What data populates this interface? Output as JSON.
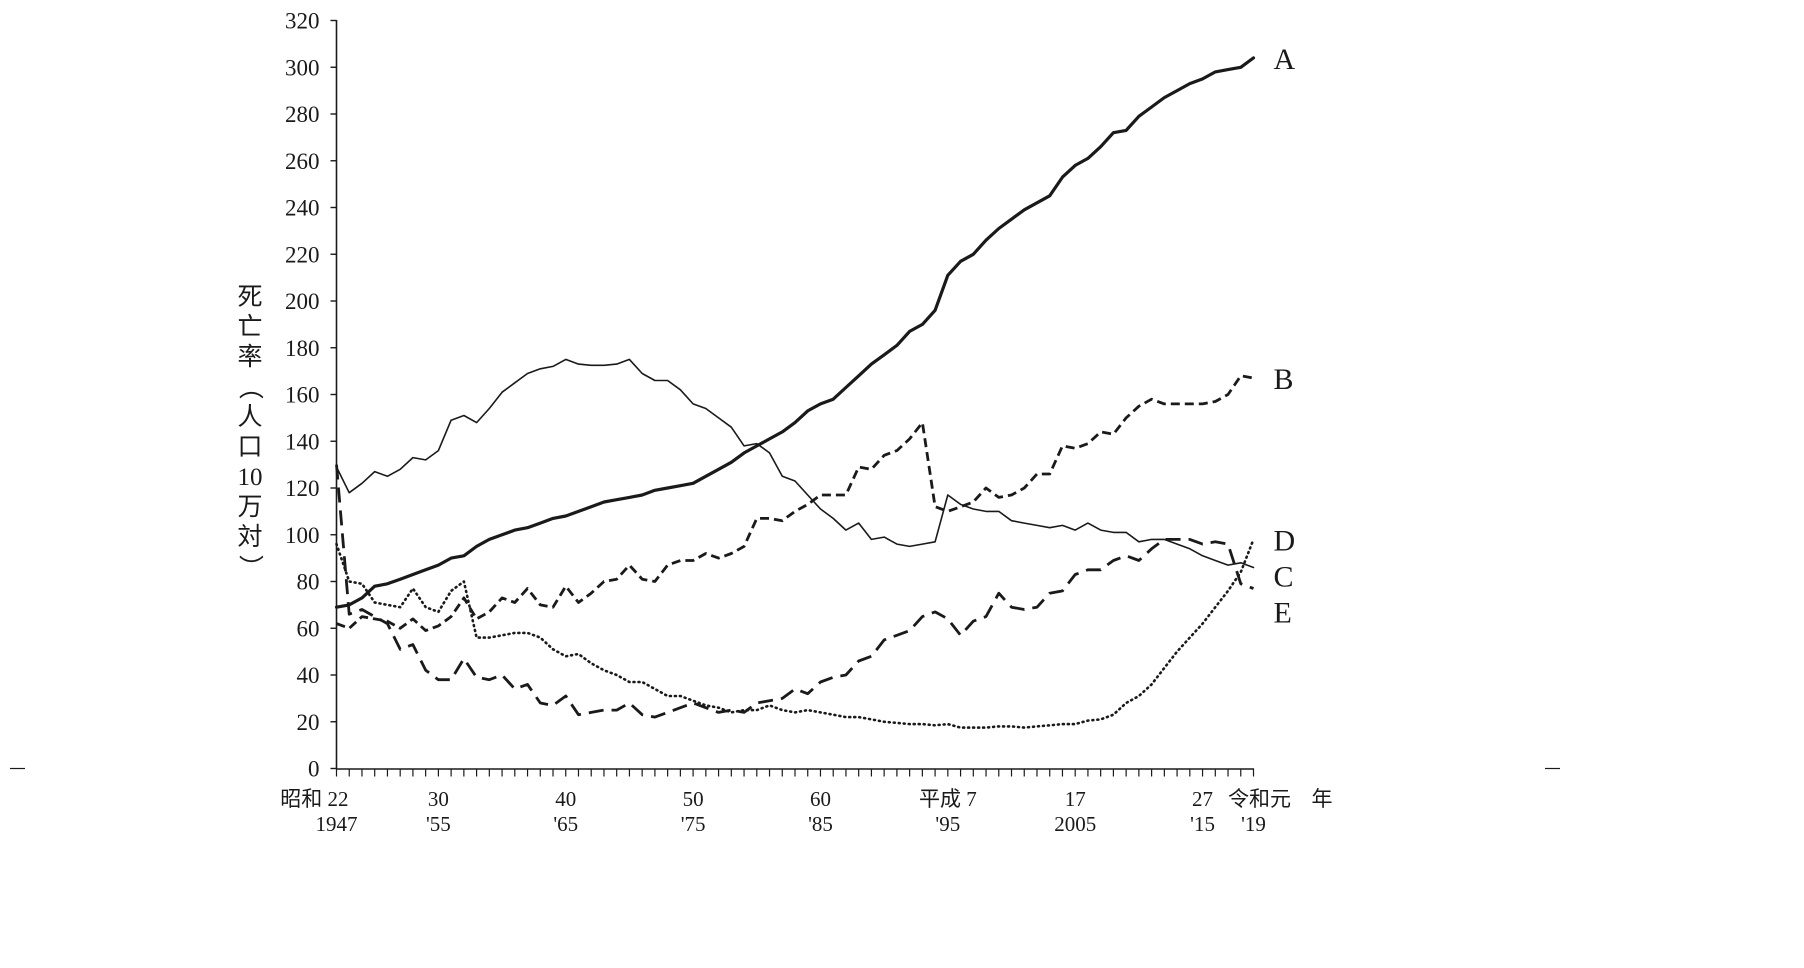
{
  "chart_data": {
    "type": "line",
    "title": "",
    "ylabel": "死亡率（人口10万対）",
    "xlabel": "",
    "ylim": [
      0,
      320
    ],
    "xlim": [
      1947,
      2019
    ],
    "y_ticks": [
      0,
      20,
      40,
      60,
      80,
      100,
      120,
      140,
      160,
      180,
      200,
      220,
      240,
      260,
      280,
      300,
      320
    ],
    "x_tick_years": [
      1947,
      1948,
      1949,
      1950,
      1951,
      1952,
      1953,
      1954,
      1955,
      1956,
      1957,
      1958,
      1959,
      1960,
      1961,
      1962,
      1963,
      1964,
      1965,
      1966,
      1967,
      1968,
      1969,
      1970,
      1971,
      1972,
      1973,
      1974,
      1975,
      1976,
      1977,
      1978,
      1979,
      1980,
      1981,
      1982,
      1983,
      1984,
      1985,
      1986,
      1987,
      1988,
      1989,
      1990,
      1991,
      1992,
      1993,
      1994,
      1995,
      1996,
      1997,
      1998,
      1999,
      2000,
      2001,
      2002,
      2003,
      2004,
      2005,
      2006,
      2007,
      2008,
      2009,
      2010,
      2011,
      2012,
      2013,
      2014,
      2015,
      2016,
      2017,
      2018,
      2019
    ],
    "x_labels": [
      {
        "year": 1947,
        "era": "昭和 22",
        "western": "1947"
      },
      {
        "year": 1955,
        "era": "30",
        "western": "'55"
      },
      {
        "year": 1965,
        "era": "40",
        "western": "'65"
      },
      {
        "year": 1975,
        "era": "50",
        "western": "'75"
      },
      {
        "year": 1985,
        "era": "60",
        "western": "'85"
      },
      {
        "year": 1995,
        "era": "平成 7",
        "western": "'95"
      },
      {
        "year": 2005,
        "era": "17",
        "western": "2005"
      },
      {
        "year": 2015,
        "era": "27",
        "western": "'15"
      },
      {
        "year": 2019,
        "era": "令和元",
        "western": "'19"
      }
    ],
    "x_unit_label": "年",
    "grid": false,
    "legend": "direct labels at right end of lines",
    "series": [
      {
        "name": "A",
        "style": "solid-thick",
        "x": [
          1947,
          1948,
          1949,
          1950,
          1951,
          1952,
          1953,
          1954,
          1955,
          1956,
          1957,
          1958,
          1959,
          1960,
          1961,
          1962,
          1963,
          1964,
          1965,
          1966,
          1967,
          1968,
          1969,
          1970,
          1971,
          1972,
          1973,
          1974,
          1975,
          1976,
          1977,
          1978,
          1979,
          1980,
          1981,
          1982,
          1983,
          1984,
          1985,
          1986,
          1987,
          1988,
          1989,
          1990,
          1991,
          1992,
          1993,
          1994,
          1995,
          1996,
          1997,
          1998,
          1999,
          2000,
          2001,
          2002,
          2003,
          2004,
          2005,
          2006,
          2007,
          2008,
          2009,
          2010,
          2011,
          2012,
          2013,
          2014,
          2015,
          2016,
          2017,
          2018,
          2019
        ],
        "values": [
          69,
          70,
          73,
          78,
          79,
          81,
          83,
          85,
          87,
          90,
          91,
          95,
          98,
          100,
          102,
          103,
          105,
          107,
          108,
          110,
          112,
          114,
          115,
          116,
          117,
          119,
          120,
          121,
          122,
          125,
          128,
          131,
          135,
          138,
          141,
          144,
          148,
          153,
          156,
          158,
          163,
          168,
          173,
          177,
          181,
          187,
          190,
          196,
          211,
          217,
          220,
          226,
          231,
          235,
          239,
          242,
          245,
          253,
          258,
          261,
          266,
          272,
          273,
          279,
          283,
          287,
          290,
          293,
          295,
          298,
          299,
          300,
          304
        ]
      },
      {
        "name": "B",
        "style": "dashed-short",
        "x": [
          1947,
          1948,
          1949,
          1950,
          1951,
          1952,
          1953,
          1954,
          1955,
          1956,
          1957,
          1958,
          1959,
          1960,
          1961,
          1962,
          1963,
          1964,
          1965,
          1966,
          1967,
          1968,
          1969,
          1970,
          1971,
          1972,
          1973,
          1974,
          1975,
          1976,
          1977,
          1978,
          1979,
          1980,
          1981,
          1982,
          1983,
          1984,
          1985,
          1986,
          1987,
          1988,
          1989,
          1990,
          1991,
          1992,
          1993,
          1994,
          1995,
          1996,
          1997,
          1998,
          1999,
          2000,
          2001,
          2002,
          2003,
          2004,
          2005,
          2006,
          2007,
          2008,
          2009,
          2010,
          2011,
          2012,
          2013,
          2014,
          2015,
          2016,
          2017,
          2018,
          2019
        ],
        "values": [
          62,
          60,
          65,
          64,
          63,
          60,
          64,
          59,
          61,
          65,
          73,
          64,
          67,
          73,
          71,
          77,
          70,
          69,
          78,
          71,
          75,
          80,
          81,
          87,
          81,
          80,
          87,
          89,
          89,
          92,
          90,
          92,
          95,
          107,
          107,
          106,
          110,
          113,
          117,
          117,
          117,
          129,
          128,
          134,
          136,
          141,
          148,
          112,
          110,
          112,
          114,
          120,
          116,
          117,
          120,
          126,
          126,
          138,
          137,
          139,
          144,
          143,
          150,
          155,
          158,
          156,
          156,
          156,
          156,
          157,
          160,
          168,
          167
        ]
      },
      {
        "name": "C",
        "style": "solid-thin",
        "x": [
          1947,
          1948,
          1949,
          1950,
          1951,
          1952,
          1953,
          1954,
          1955,
          1956,
          1957,
          1958,
          1959,
          1960,
          1961,
          1962,
          1963,
          1964,
          1965,
          1966,
          1967,
          1968,
          1969,
          1970,
          1971,
          1972,
          1973,
          1974,
          1975,
          1976,
          1977,
          1978,
          1979,
          1980,
          1981,
          1982,
          1983,
          1984,
          1985,
          1986,
          1987,
          1988,
          1989,
          1990,
          1991,
          1992,
          1993,
          1994,
          1995,
          1996,
          1997,
          1998,
          1999,
          2000,
          2001,
          2002,
          2003,
          2004,
          2005,
          2006,
          2007,
          2008,
          2009,
          2010,
          2011,
          2012,
          2013,
          2014,
          2015,
          2016,
          2017,
          2018,
          2019
        ],
        "values": [
          129,
          118,
          122,
          127,
          125,
          128,
          133,
          132,
          136,
          149,
          151,
          148,
          154,
          161,
          165,
          169,
          171,
          172,
          175,
          173,
          172.5,
          172.5,
          173,
          175,
          169,
          166,
          166,
          162,
          156,
          154,
          150,
          146,
          138,
          139,
          135,
          125,
          123,
          117,
          111,
          107,
          102,
          105,
          98,
          99,
          96,
          95,
          96,
          97,
          117,
          113,
          111,
          110,
          110,
          106,
          105,
          104,
          103,
          104,
          102,
          105,
          102,
          101,
          101,
          97,
          98,
          98,
          96,
          94,
          91,
          89,
          87,
          88,
          86
        ]
      },
      {
        "name": "D",
        "style": "dotted",
        "x": [
          1947,
          1948,
          1949,
          1950,
          1951,
          1952,
          1953,
          1954,
          1955,
          1956,
          1957,
          1958,
          1959,
          1960,
          1961,
          1962,
          1963,
          1964,
          1965,
          1966,
          1967,
          1968,
          1969,
          1970,
          1971,
          1972,
          1973,
          1974,
          1975,
          1976,
          1977,
          1978,
          1979,
          1980,
          1981,
          1982,
          1983,
          1984,
          1985,
          1986,
          1987,
          1988,
          1989,
          1990,
          1991,
          1992,
          1993,
          1994,
          1995,
          1996,
          1997,
          1998,
          1999,
          2000,
          2001,
          2002,
          2003,
          2004,
          2005,
          2006,
          2007,
          2008,
          2009,
          2010,
          2011,
          2012,
          2013,
          2014,
          2015,
          2016,
          2017,
          2018,
          2019
        ],
        "values": [
          96,
          80,
          79,
          71,
          70,
          69,
          77,
          69,
          67,
          76,
          80,
          56,
          56,
          57,
          58,
          58,
          56,
          51,
          48,
          49,
          45,
          42,
          40,
          37,
          37,
          34,
          31,
          31,
          29,
          27,
          26,
          24,
          25,
          25,
          27,
          25,
          24,
          25,
          24,
          23,
          22,
          22,
          21,
          20,
          19.5,
          19,
          19,
          18.5,
          19,
          17.5,
          17.5,
          17.5,
          18,
          18,
          17.5,
          18,
          18.5,
          19,
          19,
          20.5,
          21,
          23,
          28,
          31,
          36,
          43,
          50,
          56,
          62,
          69,
          76,
          84,
          98
        ]
      },
      {
        "name": "E",
        "style": "dashed-long",
        "x": [
          1947,
          1948,
          1949,
          1950,
          1951,
          1952,
          1953,
          1954,
          1955,
          1956,
          1957,
          1958,
          1959,
          1960,
          1961,
          1962,
          1963,
          1964,
          1965,
          1966,
          1967,
          1968,
          1969,
          1970,
          1971,
          1972,
          1973,
          1974,
          1975,
          1976,
          1977,
          1978,
          1979,
          1980,
          1981,
          1982,
          1983,
          1984,
          1985,
          1986,
          1987,
          1988,
          1989,
          1990,
          1991,
          1992,
          1993,
          1994,
          1995,
          1996,
          1997,
          1998,
          1999,
          2000,
          2001,
          2002,
          2003,
          2004,
          2005,
          2006,
          2007,
          2008,
          2009,
          2010,
          2011,
          2012,
          2013,
          2014,
          2015,
          2016,
          2017,
          2018,
          2019
        ],
        "values": [
          130,
          66,
          68,
          65,
          62,
          51,
          53,
          42,
          38,
          38,
          47,
          39,
          38,
          40,
          34,
          36,
          28,
          27,
          31,
          23,
          24,
          25,
          25,
          28,
          23,
          22,
          24,
          26,
          28,
          26,
          24,
          25,
          24,
          28,
          29,
          30,
          34,
          32,
          37,
          39,
          40,
          46,
          48,
          55,
          57,
          59,
          65,
          67,
          64,
          57,
          63,
          65,
          75,
          69,
          68,
          69,
          75,
          76,
          83,
          85,
          85,
          89,
          91,
          89,
          94,
          98,
          98,
          98,
          96,
          97,
          96,
          79,
          77
        ]
      }
    ]
  }
}
